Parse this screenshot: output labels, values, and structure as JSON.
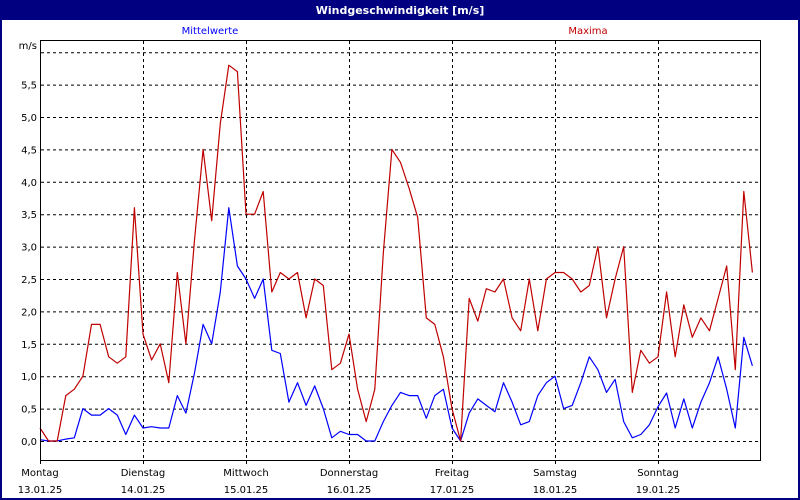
{
  "window": {
    "title": "Windgeschwindigkeit [m/s]"
  },
  "chart_data": {
    "type": "line",
    "title": "Windgeschwindigkeit [m/s]",
    "ylabel": "m/s",
    "ylim": [
      -0.3,
      6.2
    ],
    "yticks": [
      "0,0",
      "0,5",
      "1,0",
      "1,5",
      "2,0",
      "2,5",
      "3,0",
      "3,5",
      "4,0",
      "4,5",
      "5,0",
      "5,5"
    ],
    "ytick_values": [
      0,
      0.5,
      1,
      1.5,
      2,
      2.5,
      3,
      3.5,
      4,
      4.5,
      5,
      5.5
    ],
    "xticks": [
      {
        "day": "Montag",
        "date": "13.01.25"
      },
      {
        "day": "Dienstag",
        "date": "14.01.25"
      },
      {
        "day": "Mittwoch",
        "date": "15.01.25"
      },
      {
        "day": "Donnerstag",
        "date": "16.01.25"
      },
      {
        "day": "Freitag",
        "date": "17.01.25"
      },
      {
        "day": "Samstag",
        "date": "18.01.25"
      },
      {
        "day": "Sonntag",
        "date": "19.01.25"
      }
    ],
    "x_start": "13.01.25 00:00",
    "step_hours": 2,
    "grid": true,
    "legend_placement": "top",
    "series": [
      {
        "name": "Mittelwerte",
        "color": "#0000ff",
        "values": [
          0.02,
          0.0,
          0.0,
          0.03,
          0.05,
          0.5,
          0.4,
          0.4,
          0.5,
          0.4,
          0.1,
          0.4,
          0.2,
          0.22,
          0.2,
          0.2,
          0.7,
          0.43,
          1.05,
          1.8,
          1.5,
          2.3,
          3.6,
          2.7,
          2.5,
          2.2,
          2.5,
          1.4,
          1.35,
          0.6,
          0.9,
          0.55,
          0.85,
          0.5,
          0.05,
          0.15,
          0.1,
          0.1,
          0.0,
          0.0,
          0.3,
          0.55,
          0.75,
          0.7,
          0.7,
          0.35,
          0.7,
          0.8,
          0.2,
          0.0,
          0.43,
          0.65,
          0.55,
          0.45,
          0.9,
          0.6,
          0.25,
          0.3,
          0.7,
          0.9,
          1.0,
          0.5,
          0.55,
          0.9,
          1.3,
          1.1,
          0.75,
          0.95,
          0.3,
          0.05,
          0.1,
          0.25,
          0.53,
          0.74,
          0.2,
          0.65,
          0.2,
          0.6,
          0.9,
          1.3,
          0.8,
          0.2,
          1.6,
          1.16
        ]
      },
      {
        "name": "Maxima",
        "color": "#c00000",
        "values": [
          0.2,
          0.0,
          0.0,
          0.7,
          0.8,
          1.0,
          1.8,
          1.8,
          1.3,
          1.2,
          1.3,
          3.6,
          1.65,
          1.25,
          1.5,
          0.9,
          2.6,
          1.5,
          3.1,
          4.5,
          3.4,
          4.9,
          5.8,
          5.7,
          3.5,
          3.5,
          3.85,
          2.3,
          2.6,
          2.5,
          2.6,
          1.9,
          2.5,
          2.4,
          1.1,
          1.2,
          1.65,
          0.8,
          0.3,
          0.8,
          2.9,
          4.5,
          4.3,
          3.9,
          3.45,
          1.9,
          1.8,
          1.3,
          0.5,
          0.0,
          2.2,
          1.85,
          2.35,
          2.3,
          2.5,
          1.9,
          1.7,
          2.5,
          1.7,
          2.5,
          2.6,
          2.6,
          2.5,
          2.3,
          2.4,
          3.0,
          1.9,
          2.5,
          3.0,
          0.75,
          1.4,
          1.2,
          1.3,
          2.3,
          1.3,
          2.1,
          1.6,
          1.9,
          1.7,
          2.2,
          2.7,
          1.1,
          3.85,
          2.6
        ]
      }
    ]
  }
}
